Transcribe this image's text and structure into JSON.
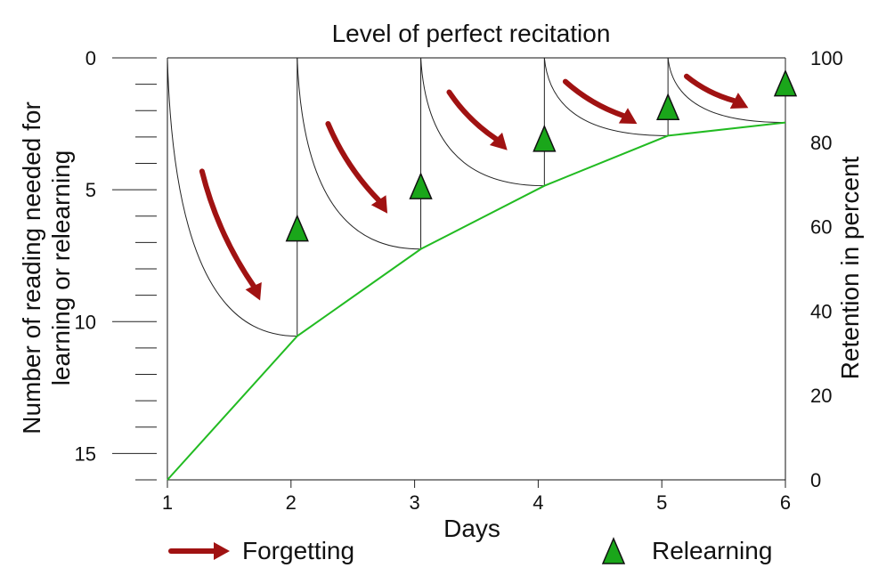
{
  "chart_data": {
    "type": "line",
    "title": "Level of perfect recitation",
    "xlabel": "Days",
    "ylabel_left": "Number of reading needed for learning or relearning",
    "ylabel_left_lines": [
      "Number of reading needed for",
      "learning or relearning"
    ],
    "ylabel_right": "Retention in percent",
    "x_ticks": [
      1,
      2,
      3,
      4,
      5,
      6
    ],
    "y_left_ticks": [
      0,
      5,
      10,
      15
    ],
    "y_left_range": [
      0,
      16
    ],
    "y_left_inverted": true,
    "y_right_ticks": [
      0,
      20,
      40,
      60,
      80,
      100
    ],
    "y_right_range": [
      0,
      100
    ],
    "grid": false,
    "series": [
      {
        "name": "Relearning",
        "marker": "triangle",
        "color": "#1aa61a",
        "points": [
          {
            "x": 2.05,
            "y": 6.5
          },
          {
            "x": 3.05,
            "y": 4.9
          },
          {
            "x": 4.05,
            "y": 3.1
          },
          {
            "x": 5.05,
            "y": 1.9
          },
          {
            "x": 6.0,
            "y": 1.0
          }
        ]
      },
      {
        "name": "Forgetting",
        "marker": "arrow",
        "color": "#a01212",
        "arrows": [
          {
            "from": [
              1.28,
              4.3
            ],
            "to": [
              1.75,
              9.2
            ]
          },
          {
            "from": [
              2.3,
              2.5
            ],
            "to": [
              2.78,
              5.9
            ]
          },
          {
            "from": [
              3.28,
              1.3
            ],
            "to": [
              3.75,
              3.5
            ]
          },
          {
            "from": [
              4.22,
              0.9
            ],
            "to": [
              4.8,
              2.5
            ]
          },
          {
            "from": [
              5.2,
              0.7
            ],
            "to": [
              5.7,
              1.9
            ]
          }
        ]
      }
    ],
    "lines": {
      "green_baseline": {
        "color": "#22bb22",
        "points": [
          [
            1,
            16.0
          ],
          [
            2.05,
            10.55
          ],
          [
            3.05,
            7.25
          ],
          [
            4.05,
            4.85
          ],
          [
            5.05,
            2.95
          ],
          [
            6.0,
            2.45
          ]
        ]
      },
      "forgetting_curves": [
        {
          "start": [
            1,
            0
          ],
          "end": [
            2.05,
            10.55
          ]
        },
        {
          "start": [
            2.05,
            0
          ],
          "end": [
            3.05,
            7.25
          ]
        },
        {
          "start": [
            3.05,
            0
          ],
          "end": [
            4.05,
            4.85
          ]
        },
        {
          "start": [
            4.05,
            0
          ],
          "end": [
            5.05,
            2.95
          ]
        },
        {
          "start": [
            5.05,
            0
          ],
          "end": [
            6.0,
            2.45
          ]
        }
      ]
    },
    "legend": {
      "placement": "bottom",
      "items": [
        {
          "label": "Forgetting",
          "marker": "arrow"
        },
        {
          "label": "Relearning",
          "marker": "triangle"
        }
      ]
    }
  }
}
